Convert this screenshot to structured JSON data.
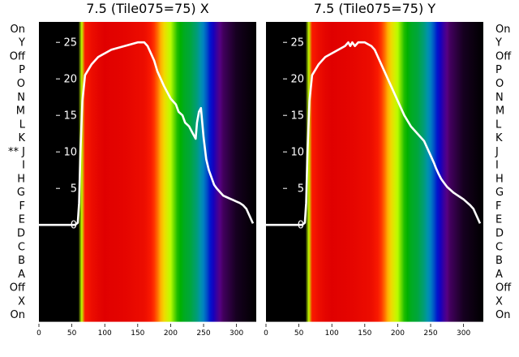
{
  "chart_data": [
    {
      "type": "heatmap",
      "title": "7.5 (Tile075=75) X",
      "x_ticks": [
        0,
        50,
        100,
        150,
        200,
        250,
        300
      ],
      "xlim": [
        0,
        330
      ],
      "row_labels": [
        "On",
        "X",
        "Off",
        "A",
        "B",
        "C",
        "D",
        "E",
        "F",
        "G",
        "H",
        "I",
        "** J",
        "K",
        "L",
        "M",
        "N",
        "O",
        "P",
        "Off",
        "Y",
        "On"
      ],
      "overlay_y_ticks": [
        0,
        5,
        10,
        15,
        20,
        25
      ],
      "overlay_ylim": [
        -13.2,
        27.8
      ],
      "colormap": [
        "#000000",
        "#5a0080",
        "#0000d0",
        "#0090c0",
        "#00b000",
        "#c0ff00",
        "#ffcc00",
        "#ff2000",
        "#e00000"
      ],
      "intensity_profile": {
        "x": [
          0,
          60,
          63,
          66,
          70,
          75,
          80,
          90,
          100,
          130,
          160,
          170,
          180,
          190,
          200,
          210,
          220,
          230,
          240,
          250,
          255,
          260,
          265,
          270,
          275,
          280,
          290,
          300,
          310,
          320,
          330
        ],
        "y": [
          0,
          0,
          0.3,
          0.8,
          0.9,
          0.92,
          0.95,
          0.98,
          1,
          0.98,
          0.95,
          0.9,
          0.82,
          0.72,
          0.62,
          0.52,
          0.48,
          0.46,
          0.42,
          0.36,
          0.32,
          0.27,
          0.22,
          0.17,
          0.13,
          0.09,
          0.06,
          0.03,
          0.02,
          0.01,
          0
        ]
      },
      "profile_line": {
        "x": [
          0,
          55,
          59,
          61,
          63,
          66,
          70,
          80,
          90,
          100,
          110,
          130,
          150,
          160,
          165,
          170,
          175,
          180,
          190,
          200,
          208,
          212,
          218,
          222,
          228,
          232,
          238,
          240,
          243,
          246,
          250,
          254,
          258,
          262,
          266,
          270,
          275,
          280,
          285,
          290,
          295,
          300,
          305,
          310,
          315,
          320,
          325
        ],
        "y": [
          0,
          0,
          0.3,
          3,
          10,
          17,
          20.5,
          22,
          23,
          23.5,
          24,
          24.5,
          25,
          25,
          24.5,
          23.5,
          22.5,
          21,
          19,
          17.3,
          16.5,
          15.5,
          15,
          14,
          13.5,
          12.8,
          11.8,
          14,
          15.5,
          16,
          12,
          9,
          7.5,
          6.5,
          5.5,
          5,
          4.5,
          4,
          3.8,
          3.6,
          3.4,
          3.2,
          3.0,
          2.7,
          2.2,
          1.2,
          0.2
        ]
      }
    },
    {
      "type": "heatmap",
      "title": "7.5 (Tile075=75) Y",
      "x_ticks": [
        0,
        50,
        100,
        150,
        200,
        250,
        300
      ],
      "xlim": [
        0,
        330
      ],
      "row_labels": [
        "On",
        "X",
        "Off",
        "A",
        "B",
        "C",
        "D",
        "E",
        "F",
        "G",
        "H",
        "I",
        "J",
        "K",
        "L",
        "M",
        "N",
        "O",
        "P",
        "Off",
        "Y",
        "On"
      ],
      "overlay_y_ticks": [
        0,
        5,
        10,
        15,
        20,
        25
      ],
      "overlay_ylim": [
        -13.2,
        27.8
      ],
      "colormap": [
        "#000000",
        "#5a0080",
        "#0000d0",
        "#0090c0",
        "#00b000",
        "#c0ff00",
        "#ffcc00",
        "#ff2000",
        "#e00000"
      ],
      "intensity_profile": {
        "x": [
          0,
          60,
          63,
          66,
          70,
          75,
          80,
          90,
          100,
          130,
          160,
          170,
          180,
          190,
          200,
          210,
          220,
          230,
          240,
          250,
          255,
          260,
          265,
          270,
          275,
          280,
          290,
          300,
          310,
          320,
          330
        ],
        "y": [
          0,
          0,
          0.3,
          0.8,
          0.9,
          0.92,
          0.95,
          0.98,
          1,
          0.98,
          0.95,
          0.9,
          0.82,
          0.72,
          0.62,
          0.52,
          0.48,
          0.46,
          0.42,
          0.36,
          0.32,
          0.27,
          0.22,
          0.17,
          0.13,
          0.09,
          0.06,
          0.03,
          0.02,
          0.01,
          0
        ]
      },
      "profile_line": {
        "x": [
          0,
          55,
          59,
          61,
          63,
          66,
          70,
          80,
          90,
          100,
          110,
          120,
          125,
          128,
          131,
          135,
          140,
          150,
          160,
          165,
          170,
          175,
          180,
          190,
          200,
          210,
          220,
          230,
          240,
          250,
          255,
          258,
          262,
          266,
          270,
          275,
          280,
          285,
          290,
          295,
          300,
          305,
          310,
          315,
          320,
          325
        ],
        "y": [
          0,
          0,
          0.3,
          3,
          10,
          17,
          20.5,
          22,
          23,
          23.5,
          24,
          24.5,
          25,
          24.5,
          25,
          24.5,
          25,
          25,
          24.5,
          24,
          23,
          22,
          21,
          19,
          17,
          15,
          13.5,
          12.5,
          11.5,
          9.5,
          8.5,
          7.8,
          7,
          6.3,
          5.8,
          5.2,
          4.8,
          4.4,
          4.1,
          3.8,
          3.5,
          3.1,
          2.7,
          2.2,
          1.2,
          0.2
        ]
      }
    }
  ]
}
